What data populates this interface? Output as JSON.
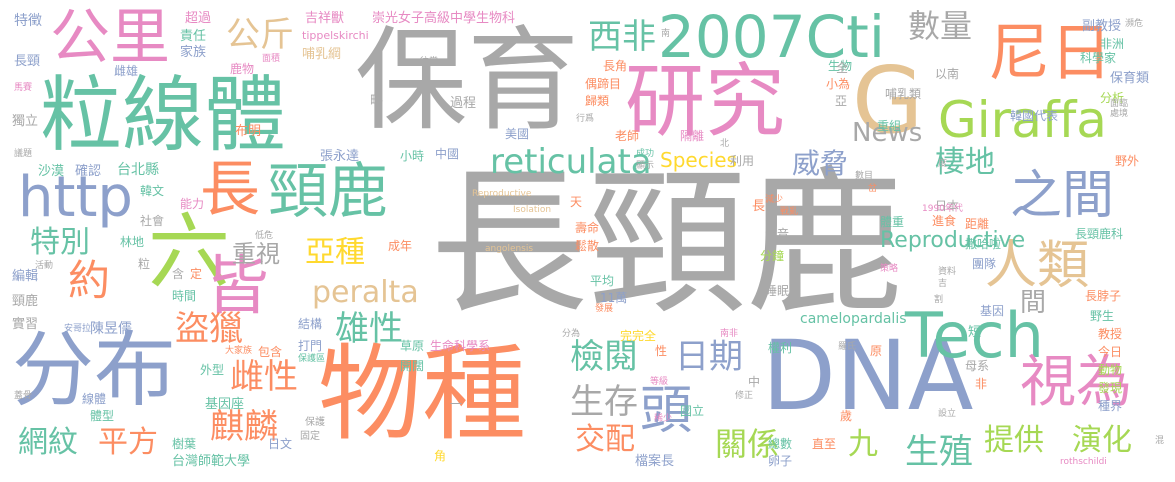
{
  "palette": {
    "gray": "#a8a8a8",
    "green": "#66c2a5",
    "orange": "#fc8d62",
    "blue": "#8da0cb",
    "pink": "#e78ac3",
    "lime": "#a6d854",
    "yellow": "#ffd92f",
    "tan": "#e5c494"
  },
  "words": {
    "w1": "長頸鹿",
    "w2": "保育",
    "w3": "物種",
    "w4": "粒線體",
    "w5": "DNA",
    "w6": "研究",
    "w7": "分布",
    "w8": "2007Cti",
    "w9": "六",
    "w10": "公里",
    "w11": "尼日",
    "w12": "長",
    "w13": "頸鹿",
    "w14": "G",
    "w15": "Giraffa",
    "w16": "http",
    "w17": "Tech",
    "w18": "之間",
    "w19": "人類",
    "w20": "皆",
    "w21": "視為",
    "w22": "reticulata",
    "w23": "peralta",
    "w24": "檢閱",
    "w25": "日期",
    "w26": "頭",
    "w27": "特別",
    "w28": "約",
    "w29": "亞種",
    "w30": "雄性",
    "w31": "盜獵",
    "w32": "麒麟",
    "w33": "平方",
    "w34": "網紋",
    "w35": "生存",
    "w36": "交配",
    "w37": "關係",
    "w38": "提供",
    "w39": "演化",
    "w40": "生殖",
    "w41": "數量",
    "w42": "威脅",
    "w43": "棲地",
    "w44": "重視",
    "w45": "公斤",
    "w46": "西非",
    "w47": "News",
    "w48": "Species",
    "w49": "雌性",
    "w50": "九",
    "w51": "特徵",
    "w52": "超過",
    "w53": "吉祥獸",
    "w54": "崇光女子高級中學生物科",
    "w55": "責任",
    "w56": "家族",
    "w57": "tippelskirchi",
    "w58": "哺乳綱",
    "w59": "長頸",
    "w60": "雌雄",
    "w61": "鹿物",
    "w62": "略",
    "w63": "過程",
    "w64": "布明",
    "w65": "小時",
    "w66": "中國",
    "w67": "張永達",
    "w68": "沙漠",
    "w69": "確認",
    "w70": "韓文",
    "w71": "能力",
    "w72": "社會",
    "w73": "林地",
    "w74": "編輯",
    "w75": "頸鹿",
    "w76": "實習",
    "w77": "陳昱儒",
    "w78": "結構",
    "w79": "打門",
    "w80": "外型",
    "w81": "基因座",
    "w82": "體型",
    "w83": "樹葉",
    "w84": "日文",
    "w85": "台灣師範大學",
    "w86": "線體",
    "w87": "保護",
    "w88": "固定",
    "w89": "草原",
    "w90": "生命科學系",
    "w91": "開闊",
    "w92": "國立",
    "w93": "檔案長",
    "w94": "總數",
    "w95": "卵子",
    "w96": "直至",
    "w97": "權利",
    "w98": "camelopardalis",
    "w99": "平均",
    "w100": "11萬",
    "w101": "分鐘",
    "w102": "發音",
    "w103": "睡眠",
    "w104": "完完全",
    "w105": "成年",
    "w106": "鬆散",
    "w107": "壽命",
    "w108": "老師",
    "w109": "美國",
    "w110": "隔離",
    "w111": "長角",
    "w112": "偶蹄目",
    "w113": "歸類",
    "w114": "生物",
    "w115": "小為",
    "w116": "重組",
    "w117": "哺乳類",
    "w118": "韓國代表",
    "w119": "分析",
    "w120": "保育類",
    "w121": "科學家",
    "w122": "非洲",
    "w123": "副教授",
    "w124": "以南",
    "w125": "日本",
    "w126": "距離",
    "w127": "撒哈啦",
    "w128": "團隊",
    "w129": "長頸鹿科",
    "w130": "長脖子",
    "w131": "基因",
    "w132": "野生",
    "w133": "教授",
    "w134": "今日",
    "w135": "動物",
    "w136": "發現",
    "w137": "種界",
    "w138": "母系",
    "w139": "非",
    "w140": "短",
    "w141": "體重",
    "w142": "進食",
    "w143": "1990年代",
    "w144": "獨立",
    "w145": "台北縣",
    "w146": "野外",
    "w147": "利用",
    "w148": "間",
    "w149": "Reproductive",
    "w150": "Isolation",
    "w151": "angolensis",
    "w152": "rothschildi",
    "w153": "天",
    "w154": "含",
    "w155": "定",
    "w156": "時間",
    "w157": "包含",
    "w158": "大家族",
    "w159": "保護區",
    "w160": "修正",
    "w161": "歲",
    "w162": "原",
    "w163": "一",
    "w164": "角",
    "w165": "性",
    "w166": "等級",
    "w167": "稀少",
    "w168": "中",
    "w169": "設立",
    "w170": "混",
    "w171": "粒",
    "w172": "低危",
    "w173": "活動",
    "w174": "蓋骨",
    "w175": "面積",
    "w176": "往常",
    "w177": "行爲",
    "w178": "南",
    "w179": "全",
    "w180": "亞",
    "w181": "成功",
    "w182": "顯示",
    "w183": "北",
    "w184": "減少",
    "w185": "戰亂",
    "w186": "數目",
    "w187": "策略",
    "w188": "割",
    "w189": "發展",
    "w190": "分為",
    "w191": "南非",
    "w192": "羅氏",
    "w193": "瀕危",
    "w194": "馬賽",
    "w195": "議題",
    "w196": "安哥拉",
    "w197": "面臨",
    "w198": "處境",
    "w199": "長",
    "w200": "資料",
    "w201": "吉",
    "w202": "度",
    "w203": "岔"
  }
}
